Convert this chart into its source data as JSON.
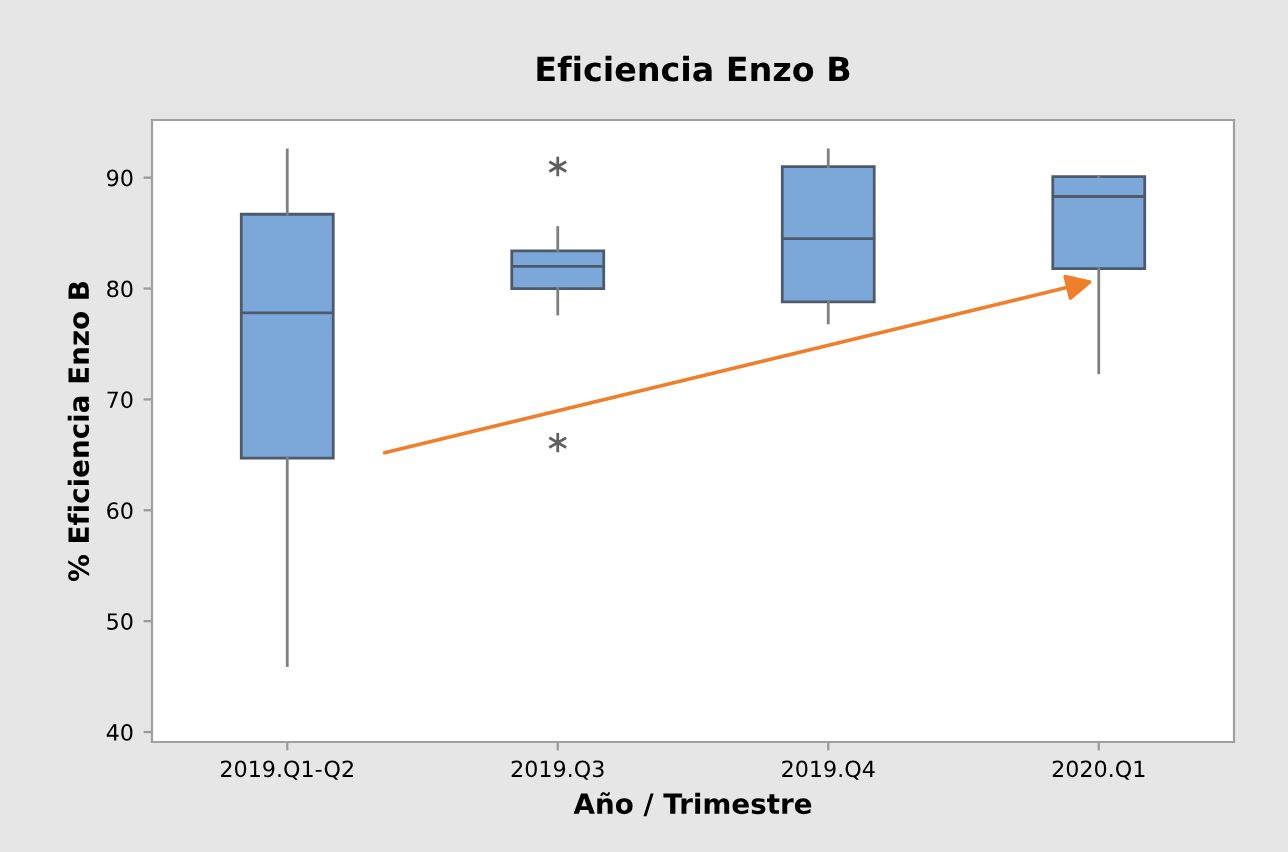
{
  "chart_data": {
    "type": "box",
    "title": "Eficiencia Enzo B",
    "xlabel": "Año / Trimestre",
    "ylabel": "% Eficiencia Enzo B",
    "categories": [
      "2019.Q1-Q2",
      "2019.Q3",
      "2019.Q4",
      "2020.Q1"
    ],
    "boxes": [
      {
        "low": 46.0,
        "q1": 64.7,
        "median": 77.8,
        "q3": 86.7,
        "high": 92.5
      },
      {
        "low": 77.7,
        "q1": 80.0,
        "median": 82.0,
        "q3": 83.4,
        "high": 85.5,
        "outliers": [
          91.0,
          66.1
        ]
      },
      {
        "low": 76.9,
        "q1": 78.8,
        "median": 84.5,
        "q3": 91.0,
        "high": 92.5
      },
      {
        "low": 72.4,
        "q1": 81.8,
        "median": 88.3,
        "q3": 90.1,
        "high": 90.1
      }
    ],
    "color": "#7ba7d9",
    "ylim": [
      39.1,
      95.2
    ],
    "yticks": [
      40,
      50,
      60,
      70,
      80,
      90
    ],
    "grid": false
  }
}
